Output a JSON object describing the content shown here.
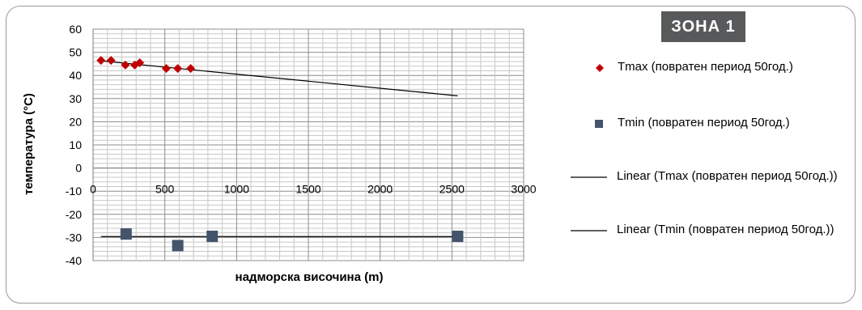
{
  "badge": "ЗОНА  1",
  "chart_data": {
    "type": "scatter",
    "title": "",
    "xlabel": "надморска височина (m)",
    "ylabel": "температура (°C)",
    "xlim": [
      0,
      3000
    ],
    "ylim": [
      -40,
      60
    ],
    "x_ticks": [
      "0",
      "500",
      "1000",
      "1500",
      "2000",
      "2500",
      "3000"
    ],
    "y_ticks": [
      "60",
      "50",
      "40",
      "30",
      "20",
      "10",
      "0",
      "-10",
      "-20",
      "-30",
      "-40"
    ],
    "grid": true,
    "legend_position": "right",
    "series": [
      {
        "name": "Tmax (повратен период 50год.)",
        "marker": "diamond",
        "color": "#c00000",
        "points": [
          [
            55,
            46.5
          ],
          [
            125,
            46.5
          ],
          [
            225,
            44.5
          ],
          [
            290,
            44.5
          ],
          [
            325,
            45.5
          ],
          [
            510,
            43
          ],
          [
            590,
            43
          ],
          [
            680,
            43
          ]
        ]
      },
      {
        "name": "Tmin (повратен период 50год.)",
        "marker": "square",
        "color": "#44546a",
        "points": [
          [
            230,
            -28.5
          ],
          [
            590,
            -33.5
          ],
          [
            830,
            -29.5
          ],
          [
            2540,
            -29.5
          ]
        ]
      }
    ],
    "trendlines": [
      {
        "name": "Linear (Tmax (повратен период 50год.))",
        "color": "#000000",
        "x": [
          55,
          2540
        ],
        "y": [
          46.3,
          31.2
        ]
      },
      {
        "name": "Linear (Tmin (повратен период 50год.))",
        "color": "#000000",
        "x": [
          55,
          2540
        ],
        "y": [
          -29.6,
          -29.6
        ]
      }
    ]
  }
}
